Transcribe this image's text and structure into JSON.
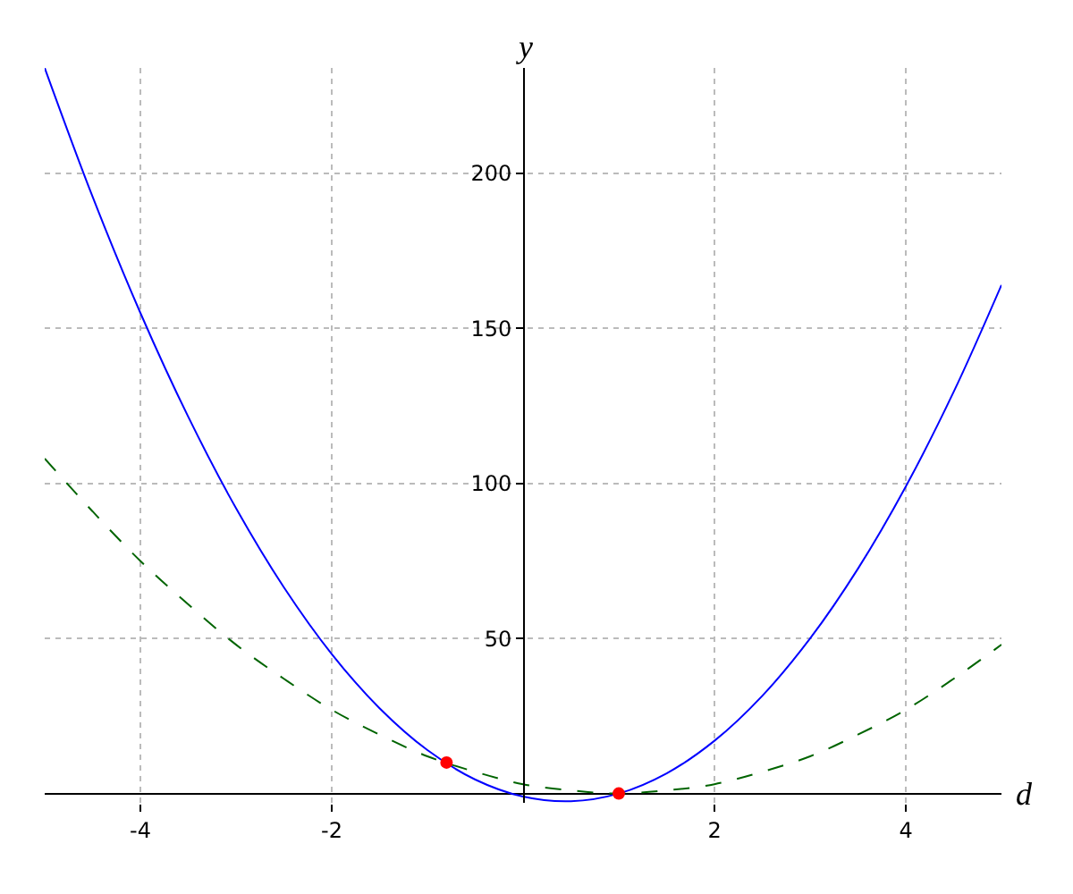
{
  "chart_data": {
    "type": "line",
    "xlabel": "d",
    "ylabel": "y",
    "x": [
      -5,
      -4.5,
      -4,
      -3.5,
      -3,
      -2.5,
      -2,
      -1.5,
      -1,
      -0.5,
      0,
      0.5,
      1,
      1.5,
      2,
      2.5,
      3,
      3.5,
      4,
      4.5,
      5
    ],
    "series": [
      {
        "color": "#0000ff",
        "line_style": "solid",
        "values": [
          234,
          192.5,
          155,
          121.5,
          92,
          66.5,
          45,
          27.5,
          14,
          4.5,
          -1,
          -2.5,
          0,
          6.5,
          17,
          31.5,
          50,
          72.5,
          99,
          129.5,
          164
        ]
      },
      {
        "color": "#006400",
        "line_style": "dashed",
        "values": [
          108,
          91,
          75,
          61,
          48,
          37,
          27,
          19,
          12,
          7,
          3,
          1,
          0,
          1,
          3,
          7,
          12,
          19,
          27,
          37,
          48
        ]
      },
      {
        "type": "scatter",
        "color": "#ff0000",
        "marker": "circle",
        "x": [
          -0.8,
          1
        ],
        "values": [
          10,
          0
        ]
      }
    ],
    "xlim": [
      -5,
      5
    ],
    "ylim": [
      -3,
      234
    ],
    "xticks": [
      -4,
      -2,
      2,
      4
    ],
    "yticks": [
      50,
      100,
      150,
      200
    ],
    "grid": true,
    "legend": false
  }
}
